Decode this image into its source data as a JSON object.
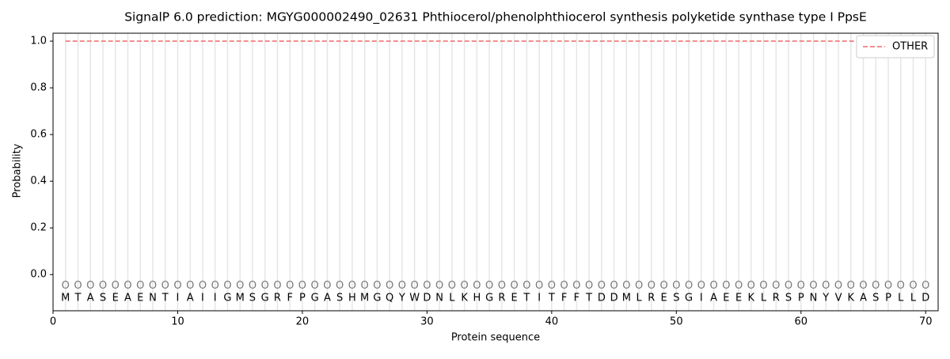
{
  "chart_data": {
    "type": "line",
    "title": "SignalP 6.0 prediction: MGYG000002490_02631 Phthiocerol/phenolphthiocerol synthesis polyketide synthase type I PpsE",
    "x_label": "Protein sequence",
    "y_label": "Probability",
    "x": [
      1,
      2,
      3,
      4,
      5,
      6,
      7,
      8,
      9,
      10,
      11,
      12,
      13,
      14,
      15,
      16,
      17,
      18,
      19,
      20,
      21,
      22,
      23,
      24,
      25,
      26,
      27,
      28,
      29,
      30,
      31,
      32,
      33,
      34,
      35,
      36,
      37,
      38,
      39,
      40,
      41,
      42,
      43,
      44,
      45,
      46,
      47,
      48,
      49,
      50,
      51,
      52,
      53,
      54,
      55,
      56,
      57,
      58,
      59,
      60,
      61,
      62,
      63,
      64,
      65,
      66,
      67,
      68,
      69,
      70
    ],
    "residues": [
      "M",
      "T",
      "A",
      "S",
      "E",
      "A",
      "E",
      "N",
      "T",
      "I",
      "A",
      "I",
      "I",
      "G",
      "M",
      "S",
      "G",
      "R",
      "F",
      "P",
      "G",
      "A",
      "S",
      "H",
      "M",
      "G",
      "Q",
      "Y",
      "W",
      "D",
      "N",
      "L",
      "K",
      "H",
      "G",
      "R",
      "E",
      "T",
      "I",
      "T",
      "F",
      "F",
      "T",
      "D",
      "D",
      "M",
      "L",
      "R",
      "E",
      "S",
      "G",
      "I",
      "A",
      "E",
      "E",
      "K",
      "L",
      "R",
      "S",
      "P",
      "N",
      "Y",
      "V",
      "K",
      "A",
      "S",
      "P",
      "L",
      "L",
      "D"
    ],
    "states": [
      "O",
      "O",
      "O",
      "O",
      "O",
      "O",
      "O",
      "O",
      "O",
      "O",
      "O",
      "O",
      "O",
      "O",
      "O",
      "O",
      "O",
      "O",
      "O",
      "O",
      "O",
      "O",
      "O",
      "O",
      "O",
      "O",
      "O",
      "O",
      "O",
      "O",
      "O",
      "O",
      "O",
      "O",
      "O",
      "O",
      "O",
      "O",
      "O",
      "O",
      "O",
      "O",
      "O",
      "O",
      "O",
      "O",
      "O",
      "O",
      "O",
      "O",
      "O",
      "O",
      "O",
      "O",
      "O",
      "O",
      "O",
      "O",
      "O",
      "O",
      "O",
      "O",
      "O",
      "O",
      "O",
      "O",
      "O",
      "O",
      "O",
      "O"
    ],
    "series": [
      {
        "name": "OTHER",
        "color": "#f07f7f",
        "values": [
          1,
          1,
          1,
          1,
          1,
          1,
          1,
          1,
          1,
          1,
          1,
          1,
          1,
          1,
          1,
          1,
          1,
          1,
          1,
          1,
          1,
          1,
          1,
          1,
          1,
          1,
          1,
          1,
          1,
          1,
          1,
          1,
          1,
          1,
          1,
          1,
          1,
          1,
          1,
          1,
          1,
          1,
          1,
          1,
          1,
          1,
          1,
          1,
          1,
          1,
          1,
          1,
          1,
          1,
          1,
          1,
          1,
          1,
          1,
          1,
          1,
          1,
          1,
          1,
          1,
          1,
          1,
          1,
          1,
          1
        ]
      }
    ],
    "xlim": [
      0,
      71
    ],
    "ylim": [
      -0.155,
      1.034
    ],
    "xticks": [
      0,
      10,
      20,
      30,
      40,
      50,
      60,
      70
    ],
    "yticks": [
      {
        "value": 0,
        "label": "0.0"
      },
      {
        "value": 0.2,
        "label": "0.2"
      },
      {
        "value": 0.4,
        "label": "0.4"
      },
      {
        "value": 0.6,
        "label": "0.6"
      },
      {
        "value": 0.8,
        "label": "0.8"
      },
      {
        "value": 1,
        "label": "1.0"
      }
    ],
    "legend": "upper right"
  }
}
